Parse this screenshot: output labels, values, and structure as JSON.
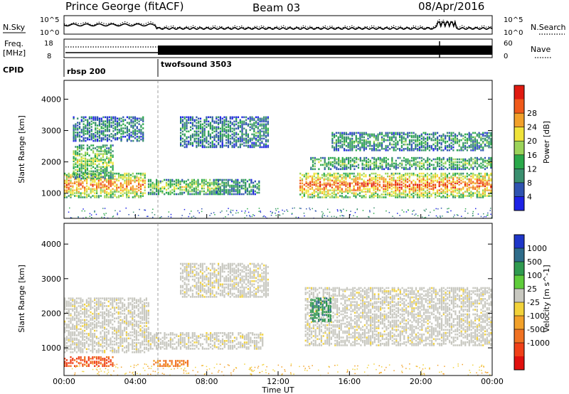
{
  "header": {
    "station": "Prince George (fitACF)",
    "beam": "Beam 03",
    "date": "08/Apr/2016"
  },
  "noise_panel": {
    "left_label": "N.Sky",
    "right_label": "N.Search",
    "left_ticks": [
      "10^5",
      "10^0"
    ],
    "right_ticks": [
      "10^5",
      "10^0"
    ]
  },
  "freq_panel": {
    "left_label_1": "Freq.",
    "left_label_2": "[MHz]",
    "left_ticks": [
      "18",
      "8"
    ],
    "right_label": "Nave",
    "right_ticks": [
      "60",
      "0"
    ]
  },
  "cpid_panel": {
    "label": "CPID",
    "programs": [
      {
        "name": "rbsp 200",
        "start_hour": 0
      },
      {
        "name": "twofsound 3503",
        "start_hour": 5.2
      }
    ]
  },
  "colors": {
    "power": [
      "#1d22e6",
      "#2f53b0",
      "#3a8f6f",
      "#2aa84a",
      "#9bd35a",
      "#f0e33a",
      "#f2a02a",
      "#f05a1a",
      "#e01a10"
    ],
    "velocity": [
      "#1e36c8",
      "#2e6c8a",
      "#2f9a4f",
      "#5fcc3b",
      "#c8c8c0",
      "#f2d23a",
      "#f2a12a",
      "#f07222",
      "#f04018",
      "#e0100e"
    ]
  },
  "chart_data": [
    {
      "type": "heatmap",
      "name": "Power",
      "ylabel": "Slant Range [km]",
      "yticks": [
        1000,
        2000,
        3000,
        4000
      ],
      "ylim": [
        200,
        4600
      ],
      "xlim": [
        0,
        24
      ],
      "colorbar_label": "Power [dB]",
      "colorbar_ticks": [
        "4",
        "8",
        "12",
        "16",
        "20",
        "24",
        "28"
      ],
      "features": [
        {
          "t0": 0,
          "t1": 4.6,
          "r0": 900,
          "r1": 1700,
          "level": 0.85
        },
        {
          "t0": 0.5,
          "t1": 2.8,
          "r0": 1500,
          "r1": 2600,
          "level": 0.55
        },
        {
          "t0": 4.7,
          "t1": 8.8,
          "r0": 1000,
          "r1": 1500,
          "level": 0.55
        },
        {
          "t0": 8.5,
          "t1": 11,
          "r0": 1000,
          "r1": 1500,
          "level": 0.35
        },
        {
          "t0": 13.2,
          "t1": 24,
          "r0": 900,
          "r1": 1700,
          "level": 0.9
        },
        {
          "t0": 13.8,
          "t1": 24,
          "r0": 1800,
          "r1": 2200,
          "level": 0.45
        },
        {
          "t0": 15,
          "t1": 24,
          "r0": 2400,
          "r1": 3000,
          "level": 0.35
        },
        {
          "t0": 6.5,
          "t1": 11.5,
          "r0": 2500,
          "r1": 3500,
          "level": 0.3
        },
        {
          "t0": 0.5,
          "t1": 4.5,
          "r0": 2700,
          "r1": 3500,
          "level": 0.3
        }
      ]
    },
    {
      "type": "heatmap",
      "name": "Velocity",
      "ylabel": "Slant Range [km]",
      "xlabel": "Time UT",
      "yticks": [
        1000,
        2000,
        3000,
        4000
      ],
      "ylim": [
        200,
        4600
      ],
      "xlim": [
        0,
        24
      ],
      "xticks": [
        "00:00",
        "04:00",
        "08:00",
        "12:00",
        "16:00",
        "20:00",
        "00:00"
      ],
      "colorbar_label": "Velocity [m s^-1]",
      "colorbar_ticks": [
        "1000",
        "500",
        "100",
        "25",
        "-25",
        "-100",
        "-500",
        "-1000"
      ],
      "features": [
        {
          "t0": 0,
          "t1": 4.8,
          "r0": 900,
          "r1": 2500,
          "level": 0.45
        },
        {
          "t0": 4.7,
          "t1": 11.2,
          "r0": 1000,
          "r1": 1500,
          "level": 0.45
        },
        {
          "t0": 13.5,
          "t1": 24,
          "r0": 1100,
          "r1": 2800,
          "level": 0.45
        },
        {
          "t0": 0,
          "t1": 2.8,
          "r0": 500,
          "r1": 800,
          "level": 0.85
        },
        {
          "t0": 5,
          "t1": 7,
          "r0": 500,
          "r1": 700,
          "level": 0.75
        },
        {
          "t0": 6.5,
          "t1": 11.5,
          "r0": 2500,
          "r1": 3500,
          "level": 0.45
        },
        {
          "t0": 13.8,
          "t1": 15,
          "r0": 1800,
          "r1": 2500,
          "level": 0.2
        }
      ]
    }
  ]
}
